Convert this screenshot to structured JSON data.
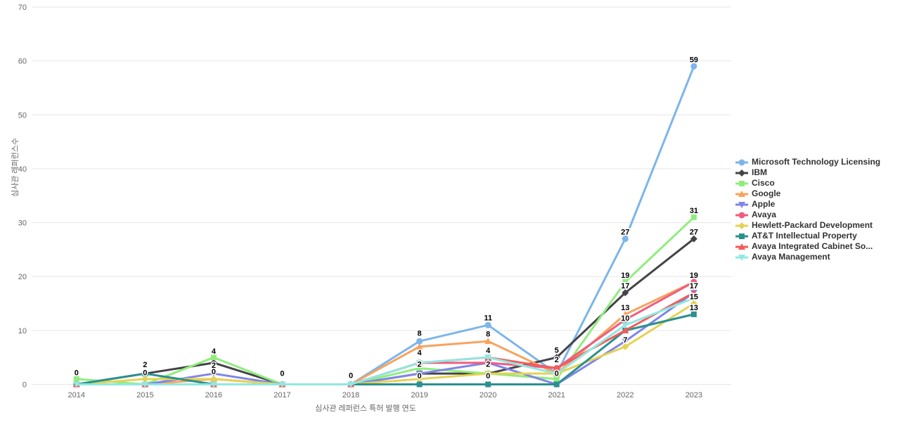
{
  "chart_data": {
    "type": "line",
    "title": "",
    "xlabel": "심사관 레퍼런스 특허 발행 연도",
    "ylabel": "심사관 레퍼런스수",
    "x": [
      2014,
      2015,
      2016,
      2017,
      2018,
      2019,
      2020,
      2021,
      2022,
      2023
    ],
    "ylim": [
      0,
      70
    ],
    "ytick_interval": 10,
    "y_ticks": [
      0,
      10,
      20,
      30,
      40,
      50,
      60,
      70
    ],
    "grid": "horizontal-only",
    "grid_color": "#e6e6e6",
    "axis_text_color": "#666666",
    "legend_position": "right",
    "series": [
      {
        "name": "Microsoft Technology Licensing",
        "color": "#7cb5ec",
        "marker": "circle",
        "values": [
          0,
          0,
          0,
          0,
          0,
          8,
          11,
          2,
          27,
          59
        ]
      },
      {
        "name": "IBM",
        "color": "#434348",
        "marker": "diamond",
        "values": [
          0,
          2,
          4,
          0,
          0,
          2,
          2,
          5,
          17,
          27
        ]
      },
      {
        "name": "Cisco",
        "color": "#90ed7d",
        "marker": "square",
        "values": [
          1,
          0,
          5,
          0,
          0,
          3,
          2,
          1,
          19,
          31
        ]
      },
      {
        "name": "Google",
        "color": "#f7a35c",
        "marker": "triangle",
        "values": [
          0,
          0,
          1,
          0,
          0,
          7,
          8,
          2,
          13,
          19
        ]
      },
      {
        "name": "Apple",
        "color": "#8085e9",
        "marker": "triangle-down",
        "values": [
          0,
          0,
          2,
          0,
          0,
          2,
          4,
          0,
          8,
          17
        ]
      },
      {
        "name": "Avaya",
        "color": "#f15c80",
        "marker": "circle",
        "values": [
          0,
          0,
          0,
          0,
          0,
          4,
          4,
          3,
          12,
          19
        ]
      },
      {
        "name": "Hewlett-Packard Development",
        "color": "#e4d354",
        "marker": "diamond",
        "values": [
          0,
          1,
          1,
          0,
          0,
          1,
          2,
          2,
          7,
          15
        ]
      },
      {
        "name": "AT&T Intellectual Property",
        "color": "#2b908f",
        "marker": "square",
        "values": [
          0,
          2,
          0,
          0,
          0,
          0,
          0,
          0,
          10,
          13
        ]
      },
      {
        "name": "Avaya Integrated Cabinet So...",
        "color": "#f45b5b",
        "marker": "triangle",
        "values": [
          0,
          0,
          0,
          0,
          0,
          4,
          5,
          3,
          10,
          17
        ]
      },
      {
        "name": "Avaya Management",
        "color": "#91e8e1",
        "marker": "triangle-down",
        "values": [
          0,
          0,
          0,
          0,
          0,
          4,
          5,
          2,
          11,
          16
        ]
      }
    ],
    "visible_point_labels": [
      {
        "x": 2014,
        "text": "0",
        "at_value": 0.9
      },
      {
        "x": 2015,
        "text": "2",
        "at_value": 2.4
      },
      {
        "x": 2015,
        "text": "0",
        "at_value": 0.9
      },
      {
        "x": 2016,
        "text": "4",
        "at_value": 4.9
      },
      {
        "x": 2016,
        "text": "2",
        "at_value": 2.3
      },
      {
        "x": 2016,
        "text": "0",
        "at_value": 1.1
      },
      {
        "x": 2017,
        "text": "0",
        "at_value": 0.8
      },
      {
        "x": 2018,
        "text": "0",
        "at_value": 0.4
      },
      {
        "x": 2019,
        "text": "8",
        "at_value": 8.2
      },
      {
        "x": 2019,
        "text": "4",
        "at_value": 4.6
      },
      {
        "x": 2019,
        "text": "2",
        "at_value": 2.5
      },
      {
        "x": 2019,
        "text": "0",
        "at_value": 0.3
      },
      {
        "x": 2020,
        "text": "11",
        "at_value": 11.1
      },
      {
        "x": 2020,
        "text": "8",
        "at_value": 8.1
      },
      {
        "x": 2020,
        "text": "4",
        "at_value": 5.0
      },
      {
        "x": 2020,
        "text": "2",
        "at_value": 2.5
      },
      {
        "x": 2020,
        "text": "0",
        "at_value": 0.3
      },
      {
        "x": 2021,
        "text": "5",
        "at_value": 5.1
      },
      {
        "x": 2021,
        "text": "2",
        "at_value": 3.3
      },
      {
        "x": 2021,
        "text": "0",
        "at_value": 0.8
      },
      {
        "x": 2022,
        "text": "27",
        "at_value": 27
      },
      {
        "x": 2022,
        "text": "19",
        "at_value": 19
      },
      {
        "x": 2022,
        "text": "17",
        "at_value": 17
      },
      {
        "x": 2022,
        "text": "13",
        "at_value": 13
      },
      {
        "x": 2022,
        "text": "10",
        "at_value": 11
      },
      {
        "x": 2022,
        "text": "7",
        "at_value": 7
      },
      {
        "x": 2023,
        "text": "59",
        "at_value": 59
      },
      {
        "x": 2023,
        "text": "31",
        "at_value": 31
      },
      {
        "x": 2023,
        "text": "27",
        "at_value": 27
      },
      {
        "x": 2023,
        "text": "19",
        "at_value": 19
      },
      {
        "x": 2023,
        "text": "17",
        "at_value": 17
      },
      {
        "x": 2023,
        "text": "15",
        "at_value": 15
      },
      {
        "x": 2023,
        "text": "13",
        "at_value": 13
      }
    ]
  }
}
